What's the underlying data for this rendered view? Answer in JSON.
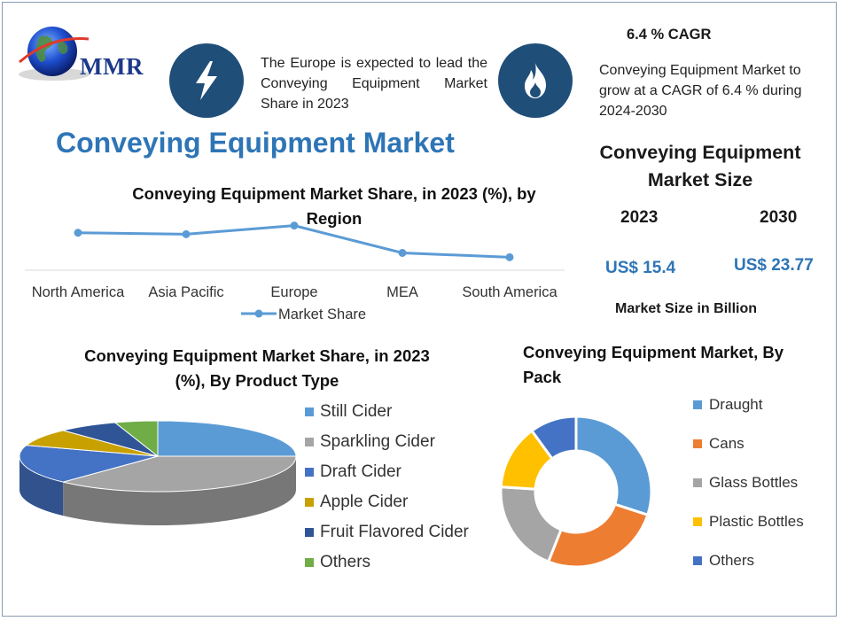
{
  "logo": {
    "text": "MMR"
  },
  "header": {
    "europe_note": "The Europe is expected to lead the Conveying Equipment Market Share in 2023",
    "cagr_title": "6.4 % CAGR",
    "cagr_desc": "Conveying Equipment Market to grow at a CAGR of 6.4 % during 2024-2030"
  },
  "main_title": "Conveying Equipment Market",
  "market_size": {
    "title": "Conveying Equipment Market Size",
    "year_start": "2023",
    "year_end": "2030",
    "value_start": "US$ 15.4",
    "value_end": "US$ 23.77",
    "unit_note": "Market Size in Billion"
  },
  "colors": {
    "primary": "#2e75b6",
    "icon_bg": "#1f4e79",
    "line": "#5b9bd5",
    "orange": "#ed7d31",
    "gray": "#a5a5a5",
    "yellow": "#ffc000",
    "dark_blue": "#264478",
    "green": "#70ad47"
  },
  "chart_data": [
    {
      "type": "line",
      "title": "Conveying Equipment Market Share, in 2023 (%), by Region",
      "categories": [
        "North America",
        "Asia Pacific",
        "Europe",
        "MEA",
        "South America"
      ],
      "series": [
        {
          "name": "Market Share",
          "values": [
            26,
            25,
            31,
            12,
            9
          ]
        }
      ],
      "ylim": [
        0,
        40
      ],
      "legend": "bottom",
      "grid": false
    },
    {
      "type": "pie",
      "title": "Conveying Equipment Market Share, in 2023 (%), By Product Type",
      "labels": [
        "Still Cider",
        "Sparkling Cider",
        "Draft Cider",
        "Apple Cider",
        "Fruit Flavored Cider",
        "Others"
      ],
      "values": [
        25,
        37,
        18,
        8,
        7,
        5
      ],
      "colors": [
        "#5b9bd5",
        "#a5a5a5",
        "#4472c4",
        "#c8a000",
        "#2f5597",
        "#70ad47"
      ],
      "legend": "right"
    },
    {
      "type": "pie",
      "subtype": "donut",
      "title": "Conveying Equipment Market, By Pack",
      "labels": [
        "Draught",
        "Cans",
        "Glass Bottles",
        "Plastic Bottles",
        "Others"
      ],
      "values": [
        30,
        26,
        20,
        14,
        10
      ],
      "colors": [
        "#5b9bd5",
        "#ed7d31",
        "#a5a5a5",
        "#ffc000",
        "#4472c4"
      ],
      "legend": "right"
    }
  ]
}
